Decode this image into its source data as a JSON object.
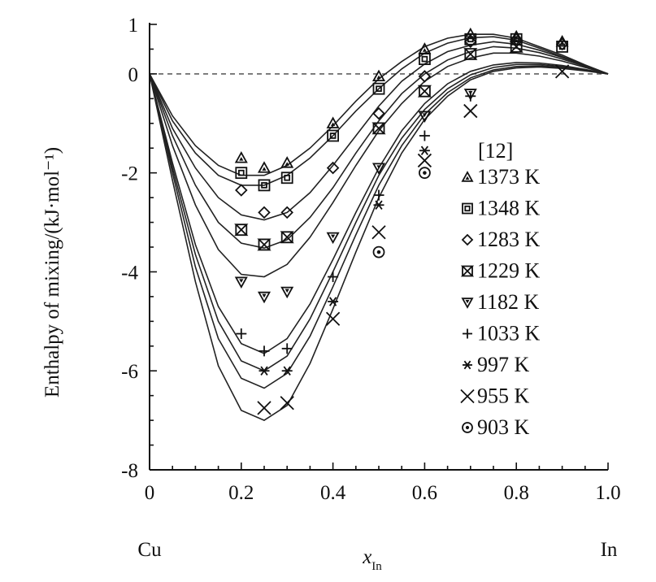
{
  "chart_data": {
    "type": "scatter",
    "ylabel": "Enthalpy of mixing/(kJ·mol⁻¹)",
    "xlabel": "x",
    "xlabel_sub": "In",
    "x_left_label": "Cu",
    "x_right_label": "In",
    "xlim": [
      0,
      1
    ],
    "ylim": [
      -8,
      1
    ],
    "x_ticks": [
      0,
      0.2,
      0.4,
      0.6,
      0.8,
      1.0
    ],
    "x_tick_labels": [
      "0",
      "0.2",
      "0.4",
      "0.6",
      "0.8",
      "1.0"
    ],
    "y_ticks": [
      1,
      0,
      -2,
      -4,
      -6,
      -8
    ],
    "y_tick_labels": [
      "1",
      "0",
      "-2",
      "-4",
      "-6",
      "-8"
    ],
    "legend_title": "[12]",
    "legend_position": "right",
    "series": [
      {
        "name": "1373 K",
        "marker": "triangle-up",
        "points": [
          [
            0.2,
            -1.7
          ],
          [
            0.25,
            -1.9
          ],
          [
            0.3,
            -1.8
          ],
          [
            0.4,
            -1.0
          ],
          [
            0.5,
            -0.05
          ],
          [
            0.6,
            0.5
          ],
          [
            0.7,
            0.8
          ],
          [
            0.8,
            0.75
          ],
          [
            0.9,
            0.65
          ]
        ]
      },
      {
        "name": "1348 K",
        "marker": "square",
        "points": [
          [
            0.2,
            -2.0
          ],
          [
            0.25,
            -2.25
          ],
          [
            0.3,
            -2.1
          ],
          [
            0.4,
            -1.25
          ],
          [
            0.5,
            -0.3
          ],
          [
            0.6,
            0.3
          ],
          [
            0.7,
            0.7
          ],
          [
            0.8,
            0.7
          ],
          [
            0.9,
            0.55
          ]
        ]
      },
      {
        "name": "1283 K",
        "marker": "diamond",
        "points": [
          [
            0.2,
            -2.35
          ],
          [
            0.25,
            -2.8
          ],
          [
            0.3,
            -2.8
          ],
          [
            0.4,
            -1.9
          ],
          [
            0.5,
            -0.8
          ],
          [
            0.6,
            -0.05
          ],
          [
            0.7,
            0.65
          ],
          [
            0.8,
            0.7
          ],
          [
            0.9,
            0.6
          ]
        ]
      },
      {
        "name": "1229 K",
        "marker": "hourglass",
        "points": [
          [
            0.2,
            -3.15
          ],
          [
            0.25,
            -3.45
          ],
          [
            0.3,
            -3.3
          ],
          [
            0.5,
            -1.1
          ],
          [
            0.6,
            -0.35
          ],
          [
            0.7,
            0.4
          ],
          [
            0.8,
            0.55
          ]
        ]
      },
      {
        "name": "1182 K",
        "marker": "triangle-down",
        "points": [
          [
            0.2,
            -4.2
          ],
          [
            0.25,
            -4.5
          ],
          [
            0.3,
            -4.4
          ],
          [
            0.4,
            -3.3
          ],
          [
            0.5,
            -1.9
          ],
          [
            0.6,
            -0.85
          ],
          [
            0.7,
            -0.4
          ]
        ]
      },
      {
        "name": "1033 K",
        "marker": "plus",
        "points": [
          [
            0.2,
            -5.25
          ],
          [
            0.25,
            -5.6
          ],
          [
            0.3,
            -5.55
          ],
          [
            0.4,
            -4.1
          ],
          [
            0.5,
            -2.45
          ],
          [
            0.6,
            -1.25
          ],
          [
            0.7,
            -0.45
          ]
        ]
      },
      {
        "name": "997 K",
        "marker": "asterisk",
        "points": [
          [
            0.25,
            -6.0
          ],
          [
            0.3,
            -6.0
          ],
          [
            0.4,
            -4.6
          ],
          [
            0.5,
            -2.65
          ],
          [
            0.6,
            -1.55
          ]
        ]
      },
      {
        "name": "955 K",
        "marker": "x",
        "points": [
          [
            0.25,
            -6.75
          ],
          [
            0.3,
            -6.65
          ],
          [
            0.4,
            -4.95
          ],
          [
            0.5,
            -3.2
          ],
          [
            0.6,
            -1.75
          ],
          [
            0.7,
            -0.75
          ],
          [
            0.9,
            0.05
          ]
        ]
      },
      {
        "name": "903 K",
        "marker": "circle",
        "points": [
          [
            0.5,
            -3.6
          ],
          [
            0.6,
            -2.0
          ]
        ]
      }
    ],
    "curves": [
      {
        "points": [
          [
            0,
            0
          ],
          [
            0.05,
            -0.85
          ],
          [
            0.1,
            -1.45
          ],
          [
            0.15,
            -1.85
          ],
          [
            0.2,
            -2.05
          ],
          [
            0.25,
            -2.05
          ],
          [
            0.3,
            -1.85
          ],
          [
            0.35,
            -1.5
          ],
          [
            0.4,
            -1.05
          ],
          [
            0.45,
            -0.55
          ],
          [
            0.5,
            -0.1
          ],
          [
            0.55,
            0.25
          ],
          [
            0.6,
            0.55
          ],
          [
            0.65,
            0.72
          ],
          [
            0.7,
            0.8
          ],
          [
            0.75,
            0.8
          ],
          [
            0.8,
            0.72
          ],
          [
            0.85,
            0.55
          ],
          [
            0.9,
            0.38
          ],
          [
            0.95,
            0.18
          ],
          [
            1.0,
            0
          ]
        ]
      },
      {
        "points": [
          [
            0,
            0
          ],
          [
            0.05,
            -0.95
          ],
          [
            0.1,
            -1.6
          ],
          [
            0.15,
            -2.05
          ],
          [
            0.2,
            -2.25
          ],
          [
            0.25,
            -2.25
          ],
          [
            0.3,
            -2.05
          ],
          [
            0.35,
            -1.7
          ],
          [
            0.4,
            -1.25
          ],
          [
            0.45,
            -0.75
          ],
          [
            0.5,
            -0.3
          ],
          [
            0.55,
            0.1
          ],
          [
            0.6,
            0.42
          ],
          [
            0.65,
            0.62
          ],
          [
            0.7,
            0.73
          ],
          [
            0.75,
            0.75
          ],
          [
            0.8,
            0.68
          ],
          [
            0.85,
            0.52
          ],
          [
            0.9,
            0.35
          ],
          [
            0.95,
            0.17
          ],
          [
            1.0,
            0
          ]
        ]
      },
      {
        "points": [
          [
            0,
            0
          ],
          [
            0.05,
            -1.1
          ],
          [
            0.1,
            -1.9
          ],
          [
            0.15,
            -2.5
          ],
          [
            0.2,
            -2.85
          ],
          [
            0.25,
            -2.95
          ],
          [
            0.3,
            -2.8
          ],
          [
            0.35,
            -2.4
          ],
          [
            0.4,
            -1.85
          ],
          [
            0.45,
            -1.25
          ],
          [
            0.5,
            -0.65
          ],
          [
            0.55,
            -0.15
          ],
          [
            0.6,
            0.2
          ],
          [
            0.65,
            0.45
          ],
          [
            0.7,
            0.58
          ],
          [
            0.75,
            0.65
          ],
          [
            0.8,
            0.6
          ],
          [
            0.85,
            0.48
          ],
          [
            0.9,
            0.33
          ],
          [
            0.95,
            0.16
          ],
          [
            1.0,
            0
          ]
        ]
      },
      {
        "points": [
          [
            0,
            0
          ],
          [
            0.05,
            -1.25
          ],
          [
            0.1,
            -2.25
          ],
          [
            0.15,
            -3.0
          ],
          [
            0.2,
            -3.42
          ],
          [
            0.25,
            -3.52
          ],
          [
            0.3,
            -3.35
          ],
          [
            0.35,
            -2.9
          ],
          [
            0.4,
            -2.3
          ],
          [
            0.45,
            -1.6
          ],
          [
            0.5,
            -0.95
          ],
          [
            0.55,
            -0.4
          ],
          [
            0.6,
            0.0
          ],
          [
            0.65,
            0.28
          ],
          [
            0.7,
            0.45
          ],
          [
            0.75,
            0.55
          ],
          [
            0.8,
            0.52
          ],
          [
            0.85,
            0.43
          ],
          [
            0.9,
            0.3
          ],
          [
            0.95,
            0.15
          ],
          [
            1.0,
            0
          ]
        ]
      },
      {
        "points": [
          [
            0,
            0
          ],
          [
            0.05,
            -1.45
          ],
          [
            0.1,
            -2.65
          ],
          [
            0.15,
            -3.55
          ],
          [
            0.2,
            -4.05
          ],
          [
            0.25,
            -4.1
          ],
          [
            0.3,
            -3.85
          ],
          [
            0.35,
            -3.3
          ],
          [
            0.4,
            -2.6
          ],
          [
            0.45,
            -1.85
          ],
          [
            0.5,
            -1.15
          ],
          [
            0.55,
            -0.6
          ],
          [
            0.6,
            -0.15
          ],
          [
            0.65,
            0.15
          ],
          [
            0.7,
            0.32
          ],
          [
            0.75,
            0.42
          ],
          [
            0.8,
            0.42
          ],
          [
            0.85,
            0.36
          ],
          [
            0.9,
            0.26
          ],
          [
            0.95,
            0.13
          ],
          [
            1.0,
            0
          ]
        ]
      },
      {
        "points": [
          [
            0,
            0
          ],
          [
            0.05,
            -1.8
          ],
          [
            0.1,
            -3.45
          ],
          [
            0.15,
            -4.7
          ],
          [
            0.2,
            -5.45
          ],
          [
            0.25,
            -5.65
          ],
          [
            0.3,
            -5.35
          ],
          [
            0.35,
            -4.65
          ],
          [
            0.4,
            -3.75
          ],
          [
            0.45,
            -2.8
          ],
          [
            0.5,
            -1.9
          ],
          [
            0.55,
            -1.15
          ],
          [
            0.6,
            -0.6
          ],
          [
            0.65,
            -0.2
          ],
          [
            0.7,
            0.05
          ],
          [
            0.75,
            0.18
          ],
          [
            0.8,
            0.23
          ],
          [
            0.85,
            0.22
          ],
          [
            0.9,
            0.17
          ],
          [
            0.95,
            0.09
          ],
          [
            1.0,
            0
          ]
        ]
      },
      {
        "points": [
          [
            0,
            0
          ],
          [
            0.05,
            -1.9
          ],
          [
            0.1,
            -3.65
          ],
          [
            0.15,
            -5.0
          ],
          [
            0.2,
            -5.8
          ],
          [
            0.25,
            -6.0
          ],
          [
            0.3,
            -5.7
          ],
          [
            0.35,
            -4.95
          ],
          [
            0.4,
            -4.0
          ],
          [
            0.45,
            -3.0
          ],
          [
            0.5,
            -2.05
          ],
          [
            0.55,
            -1.3
          ],
          [
            0.6,
            -0.72
          ],
          [
            0.65,
            -0.3
          ],
          [
            0.7,
            -0.02
          ],
          [
            0.75,
            0.13
          ],
          [
            0.8,
            0.19
          ],
          [
            0.85,
            0.19
          ],
          [
            0.9,
            0.15
          ],
          [
            0.95,
            0.08
          ],
          [
            1.0,
            0
          ]
        ]
      },
      {
        "points": [
          [
            0,
            0
          ],
          [
            0.05,
            -2.0
          ],
          [
            0.1,
            -3.9
          ],
          [
            0.15,
            -5.35
          ],
          [
            0.2,
            -6.15
          ],
          [
            0.25,
            -6.35
          ],
          [
            0.3,
            -6.05
          ],
          [
            0.35,
            -5.3
          ],
          [
            0.4,
            -4.3
          ],
          [
            0.45,
            -3.25
          ],
          [
            0.5,
            -2.25
          ],
          [
            0.55,
            -1.45
          ],
          [
            0.6,
            -0.82
          ],
          [
            0.65,
            -0.38
          ],
          [
            0.7,
            -0.08
          ],
          [
            0.75,
            0.08
          ],
          [
            0.8,
            0.15
          ],
          [
            0.85,
            0.16
          ],
          [
            0.9,
            0.13
          ],
          [
            0.95,
            0.07
          ],
          [
            1.0,
            0
          ]
        ]
      },
      {
        "points": [
          [
            0,
            0
          ],
          [
            0.05,
            -2.15
          ],
          [
            0.1,
            -4.2
          ],
          [
            0.15,
            -5.9
          ],
          [
            0.2,
            -6.8
          ],
          [
            0.25,
            -7.0
          ],
          [
            0.3,
            -6.7
          ],
          [
            0.35,
            -5.85
          ],
          [
            0.4,
            -4.75
          ],
          [
            0.45,
            -3.6
          ],
          [
            0.5,
            -2.5
          ],
          [
            0.55,
            -1.6
          ],
          [
            0.6,
            -0.92
          ],
          [
            0.65,
            -0.45
          ],
          [
            0.7,
            -0.12
          ],
          [
            0.75,
            0.05
          ],
          [
            0.8,
            0.12
          ],
          [
            0.85,
            0.14
          ],
          [
            0.9,
            0.11
          ],
          [
            0.95,
            0.06
          ],
          [
            1.0,
            0
          ]
        ]
      }
    ]
  }
}
